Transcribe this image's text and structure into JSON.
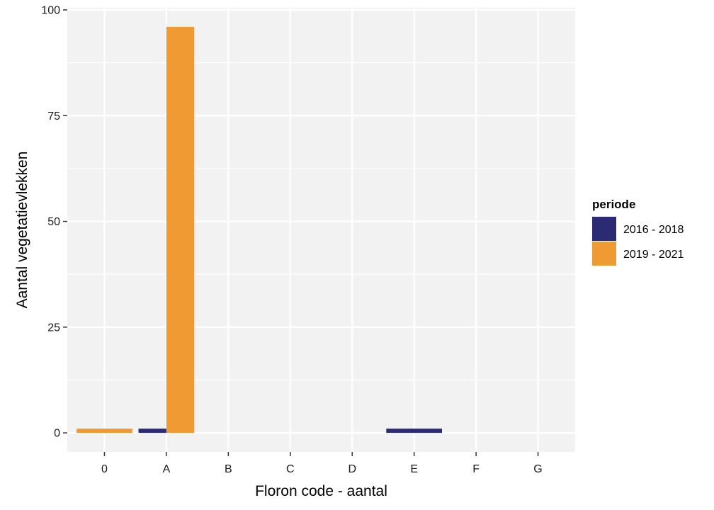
{
  "chart_data": {
    "type": "bar",
    "xlabel": "Floron code - aantal",
    "ylabel": "Aantal vegetatievlekken",
    "categories": [
      "0",
      "A",
      "B",
      "C",
      "D",
      "E",
      "F",
      "G"
    ],
    "ylim": [
      -4.5,
      100.5
    ],
    "yticks": [
      0,
      25,
      50,
      75,
      100
    ],
    "ytick_labels": [
      "0",
      "25",
      "50",
      "75",
      "100"
    ],
    "grid": true,
    "legend": {
      "title": "periode",
      "position": "right"
    },
    "series": [
      {
        "name": "2016 - 2018",
        "color": "#2b2a72",
        "values": [
          null,
          1,
          null,
          null,
          null,
          1,
          null,
          null
        ]
      },
      {
        "name": "2019 - 2021",
        "color": "#f09a34",
        "values": [
          1,
          96,
          null,
          null,
          null,
          null,
          null,
          null
        ]
      }
    ]
  }
}
